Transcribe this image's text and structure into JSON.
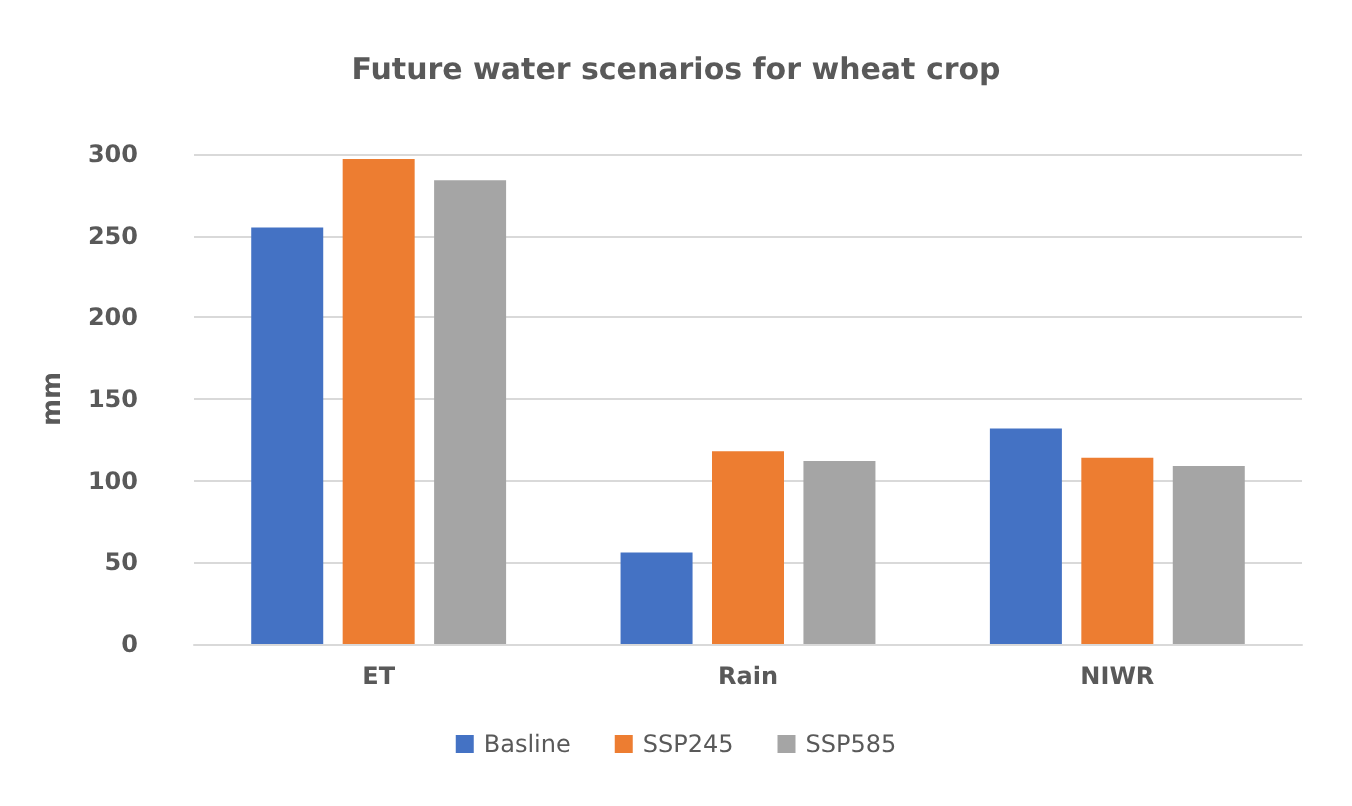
{
  "chart_data": {
    "type": "bar",
    "title": "Future water scenarios for wheat crop",
    "ylabel": "mm",
    "categories": [
      "ET",
      "Rain",
      "NIWR"
    ],
    "series": [
      {
        "name": "Basline",
        "color": "#4472c4",
        "values": [
          255,
          56,
          132
        ]
      },
      {
        "name": "SSP245",
        "color": "#ed7d31",
        "values": [
          297,
          118,
          114
        ]
      },
      {
        "name": "SSP585",
        "color": "#a5a5a5",
        "values": [
          284,
          112,
          109
        ]
      }
    ],
    "ylim": [
      0,
      300
    ],
    "yticks": [
      0,
      50,
      100,
      150,
      200,
      250,
      300
    ],
    "grid": "y",
    "legend": "bottom"
  }
}
